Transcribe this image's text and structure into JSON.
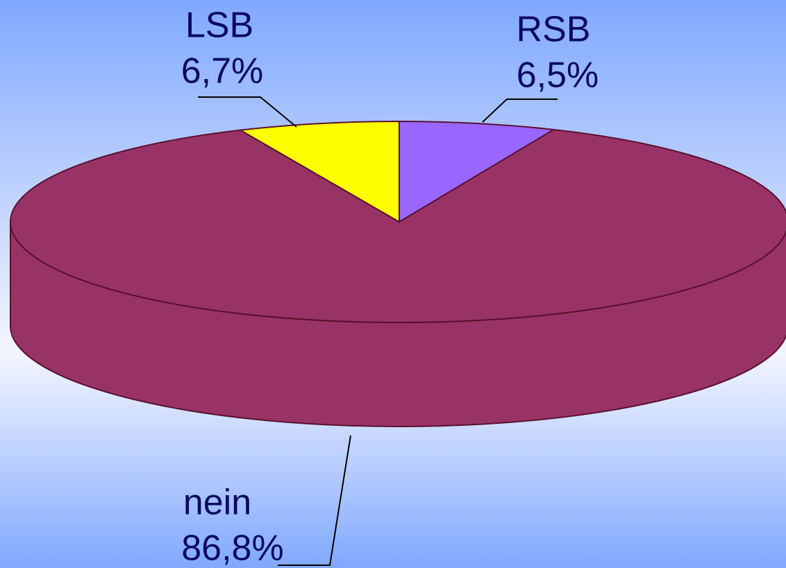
{
  "chart_data": {
    "type": "pie3d",
    "categories": [
      "RSB",
      "nein",
      "LSB"
    ],
    "values": [
      6.5,
      86.8,
      6.7
    ],
    "value_labels": [
      "6,5%",
      "86,8%",
      "6,7%"
    ],
    "colors": [
      "#9966ff",
      "#993366",
      "#ffff00"
    ]
  }
}
